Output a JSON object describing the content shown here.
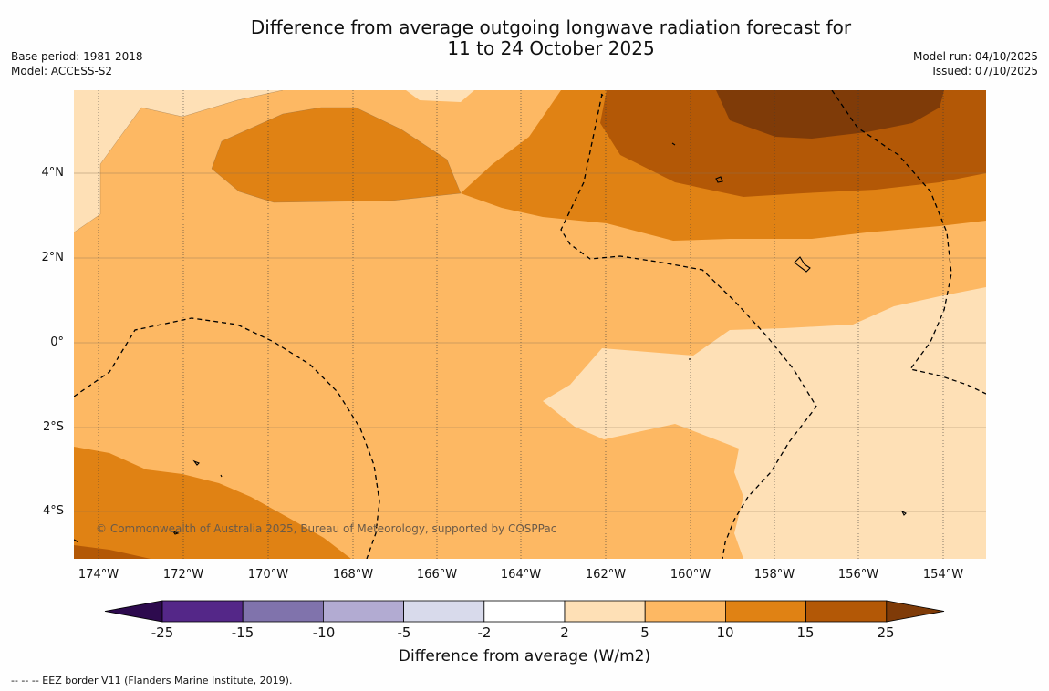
{
  "title_line1": "Difference from average outgoing longwave radiation forecast for",
  "title_line2": "11 to 24 October 2025",
  "base_period": "Base period: 1981-2018",
  "model": "Model: ACCESS-S2",
  "model_run": "Model run: 04/10/2025",
  "issued": "Issued: 07/10/2025",
  "copyright": "© Commonwealth of Australia 2025, Bureau of Meteorology, supported by COSPPac",
  "x_ticks": [
    "174°W",
    "172°W",
    "170°W",
    "168°W",
    "166°W",
    "164°W",
    "162°W",
    "160°W",
    "158°W",
    "156°W",
    "154°W"
  ],
  "y_ticks": [
    "4°N",
    "2°N",
    "0°",
    "2°S",
    "4°S"
  ],
  "colorbar": {
    "labels": [
      "-25",
      "-15",
      "-10",
      "-5",
      "-2",
      "2",
      "5",
      "10",
      "15",
      "25"
    ],
    "title": "Difference from average (W/m2)",
    "colors": [
      "#2d0a4e",
      "#542788",
      "#8073ac",
      "#b2abd2",
      "#d8daeb",
      "#ffffff",
      "#fee0b6",
      "#fdb863",
      "#e08214",
      "#b35806",
      "#7f3b08"
    ]
  },
  "footer": "--  --  -- EEZ border V11 (Flanders Marine Institute, 2019)."
}
